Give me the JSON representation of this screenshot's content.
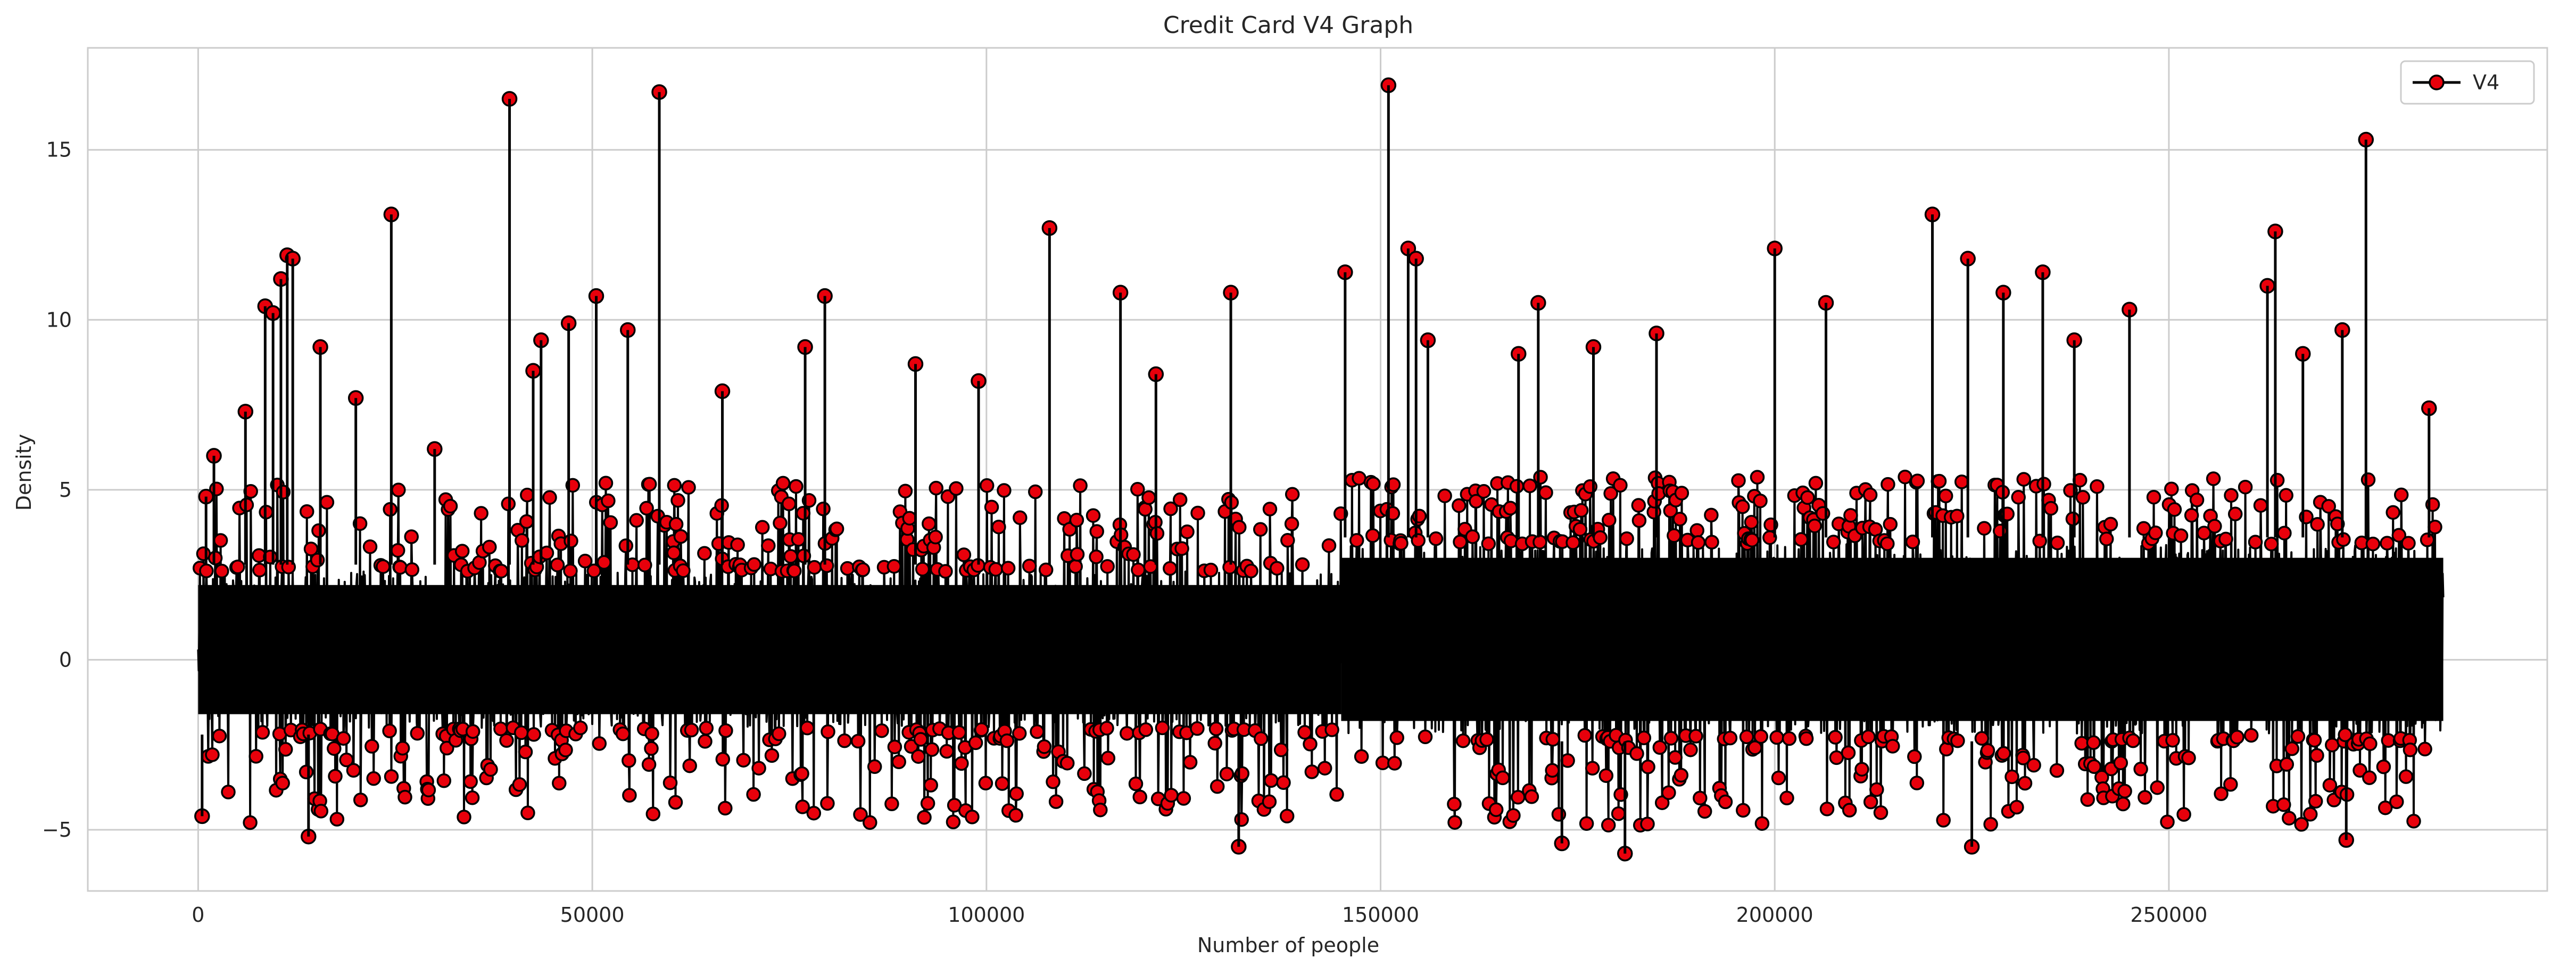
{
  "chart_data": {
    "type": "line",
    "title": "Credit Card V4 Graph",
    "xlabel": "Number of people",
    "ylabel": "Density",
    "xlim": [
      -14000,
      298000
    ],
    "ylim": [
      -6.8,
      18.0
    ],
    "x_ticks": [
      0,
      50000,
      100000,
      150000,
      200000,
      250000
    ],
    "x_tick_labels": [
      "0",
      "50000",
      "100000",
      "150000",
      "200000",
      "250000"
    ],
    "y_ticks": [
      -5,
      0,
      5,
      10,
      15
    ],
    "y_tick_labels": [
      "−5",
      "0",
      "5",
      "10",
      "15"
    ],
    "grid": true,
    "legend_position": "top-right",
    "n_points": 284807,
    "series": [
      {
        "name": "V4",
        "line_color": "#000000",
        "marker": "circle",
        "marker_face_color": "#e8000b",
        "marker_edge_color": "#000000",
        "band_segments": [
          {
            "x_start": 0,
            "x_end": 145000,
            "low_core": -2.2,
            "high_core": 2.8,
            "low_extreme": -4.8,
            "high_extreme": 5.2
          },
          {
            "x_start": 145000,
            "x_end": 284807,
            "low_core": -2.4,
            "high_core": 3.6,
            "low_extreme": -4.9,
            "high_extreme": 5.4
          }
        ],
        "spikes": [
          {
            "x": 500,
            "y": -4.6
          },
          {
            "x": 1000,
            "y": 4.8
          },
          {
            "x": 2000,
            "y": 6.0
          },
          {
            "x": 6000,
            "y": 7.3
          },
          {
            "x": 8500,
            "y": 10.4
          },
          {
            "x": 9500,
            "y": 10.2
          },
          {
            "x": 10500,
            "y": 11.2
          },
          {
            "x": 11300,
            "y": 11.9
          },
          {
            "x": 12000,
            "y": 11.8
          },
          {
            "x": 14000,
            "y": -5.2
          },
          {
            "x": 15500,
            "y": 9.2
          },
          {
            "x": 20000,
            "y": 7.7
          },
          {
            "x": 24500,
            "y": 13.1
          },
          {
            "x": 30000,
            "y": 6.2
          },
          {
            "x": 39500,
            "y": 16.5
          },
          {
            "x": 42500,
            "y": 8.5
          },
          {
            "x": 43500,
            "y": 9.4
          },
          {
            "x": 47000,
            "y": 9.9
          },
          {
            "x": 50500,
            "y": 10.7
          },
          {
            "x": 54500,
            "y": 9.7
          },
          {
            "x": 58500,
            "y": 16.7
          },
          {
            "x": 66500,
            "y": 7.9
          },
          {
            "x": 77000,
            "y": 9.2
          },
          {
            "x": 79500,
            "y": 10.7
          },
          {
            "x": 91000,
            "y": 8.7
          },
          {
            "x": 99000,
            "y": 8.2
          },
          {
            "x": 108000,
            "y": 12.7
          },
          {
            "x": 117000,
            "y": 10.8
          },
          {
            "x": 121500,
            "y": 8.4
          },
          {
            "x": 131000,
            "y": 10.8
          },
          {
            "x": 132000,
            "y": -5.5
          },
          {
            "x": 145500,
            "y": 11.4
          },
          {
            "x": 151000,
            "y": 16.9
          },
          {
            "x": 153500,
            "y": 12.1
          },
          {
            "x": 154500,
            "y": 11.8
          },
          {
            "x": 156000,
            "y": 9.4
          },
          {
            "x": 167500,
            "y": 9.0
          },
          {
            "x": 170000,
            "y": 10.5
          },
          {
            "x": 173000,
            "y": -5.4
          },
          {
            "x": 177000,
            "y": 9.2
          },
          {
            "x": 181000,
            "y": -5.7
          },
          {
            "x": 185000,
            "y": 9.6
          },
          {
            "x": 200000,
            "y": 12.1
          },
          {
            "x": 206500,
            "y": 10.5
          },
          {
            "x": 220000,
            "y": 13.1
          },
          {
            "x": 224500,
            "y": 11.8
          },
          {
            "x": 225000,
            "y": -5.5
          },
          {
            "x": 229000,
            "y": 10.8
          },
          {
            "x": 234000,
            "y": 11.4
          },
          {
            "x": 238000,
            "y": 9.4
          },
          {
            "x": 245000,
            "y": 10.3
          },
          {
            "x": 262500,
            "y": 11.0
          },
          {
            "x": 263500,
            "y": 12.6
          },
          {
            "x": 267000,
            "y": 9.0
          },
          {
            "x": 272000,
            "y": 9.7
          },
          {
            "x": 272500,
            "y": -5.3
          },
          {
            "x": 275000,
            "y": 15.3
          },
          {
            "x": 283000,
            "y": 7.4
          }
        ]
      }
    ],
    "colors": {
      "background": "#ffffff",
      "grid": "#cccccc",
      "axes_frame": "#cccccc",
      "text": "#262626",
      "line": "#000000",
      "marker_face": "#e8000b"
    }
  }
}
